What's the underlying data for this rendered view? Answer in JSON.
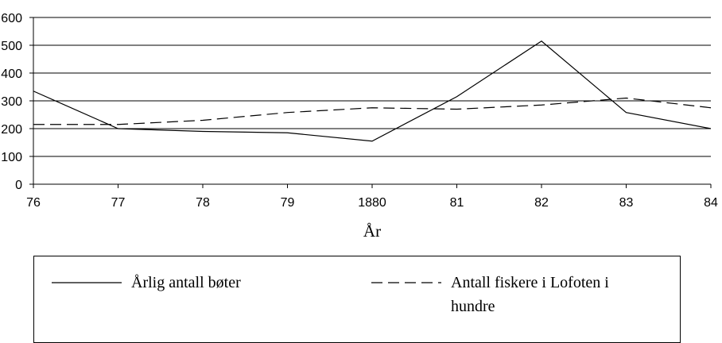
{
  "chart_data": {
    "type": "line",
    "x_label": "År",
    "categories": [
      "76",
      "77",
      "78",
      "79",
      "1880",
      "81",
      "82",
      "83",
      "84"
    ],
    "series": [
      {
        "name": "Årlig antall bøter",
        "color": "#000000",
        "style": "solid",
        "values": [
          335,
          200,
          190,
          185,
          155,
          315,
          515,
          258,
          200
        ]
      },
      {
        "name": "Antall fiskere i Lofoten i hundre",
        "color": "#000000",
        "style": "dashed",
        "values": [
          215,
          215,
          230,
          258,
          275,
          270,
          285,
          310,
          275
        ]
      }
    ],
    "ylim": [
      0,
      600
    ],
    "yticks": [
      0,
      100,
      200,
      300,
      400,
      500,
      600
    ],
    "grid": true
  }
}
